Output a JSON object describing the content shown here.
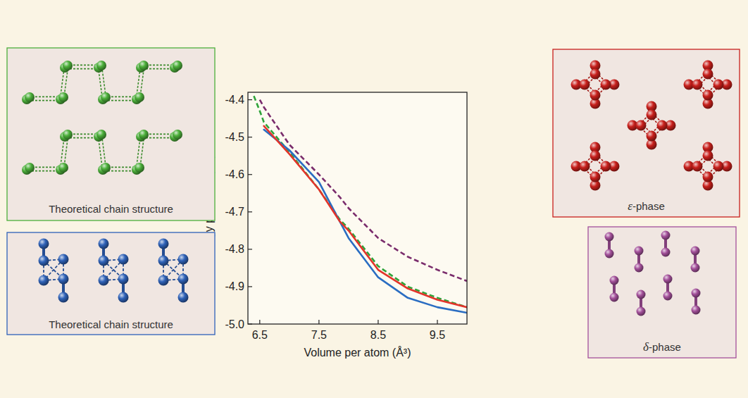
{
  "chart_data": {
    "type": "line",
    "x_label": "Volume per atom (Å³)",
    "y_label": "Energy per atom (eV)",
    "x": [
      6.4,
      6.5,
      6.57,
      7.0,
      7.5,
      7.85,
      8.0,
      8.5,
      9.0,
      9.5,
      10.0
    ],
    "series": [
      {
        "color": "#2fa33a",
        "line_style": "dashed",
        "values": [
          -4.39,
          -4.43,
          -4.46,
          -4.54,
          -4.64,
          -4.72,
          -4.745,
          -4.845,
          -4.9,
          -4.93,
          -4.955
        ]
      },
      {
        "color": "#2a6dc2",
        "line_style": "solid",
        "values": [
          null,
          null,
          -4.48,
          -4.535,
          -4.62,
          -4.725,
          -4.77,
          -4.875,
          -4.93,
          -4.955,
          -4.97
        ]
      },
      {
        "color": "#e2342a",
        "line_style": "solid",
        "values": [
          null,
          null,
          -4.47,
          -4.545,
          -4.64,
          -4.725,
          -4.75,
          -4.855,
          -4.905,
          -4.935,
          -4.955
        ]
      },
      {
        "color": "#7a2c6c",
        "line_style": "dashed",
        "values": [
          null,
          -4.4,
          -4.42,
          -4.52,
          -4.6,
          -4.66,
          -4.69,
          -4.77,
          -4.82,
          -4.855,
          -4.885
        ]
      }
    ],
    "xlim": [
      6.3,
      10.0
    ],
    "ylim": [
      -5.0,
      -4.38
    ],
    "xticks": [
      6.5,
      7.5,
      8.5,
      9.5
    ],
    "yticks": [
      -4.4,
      -4.5,
      -4.6,
      -4.7,
      -4.8,
      -4.9,
      {
        "value": -5,
        "label": "-5.0"
      }
    ],
    "grid": false
  },
  "structures": [
    {
      "label": "Theoretical chain structure",
      "color": "#4caf3a"
    },
    {
      "label": "Theoretical chain structure",
      "color": "#2f62b8"
    },
    {
      "label": "ε-phase",
      "color": "#c8201c"
    },
    {
      "label": "δ-phase",
      "color": "#a3509a"
    }
  ]
}
